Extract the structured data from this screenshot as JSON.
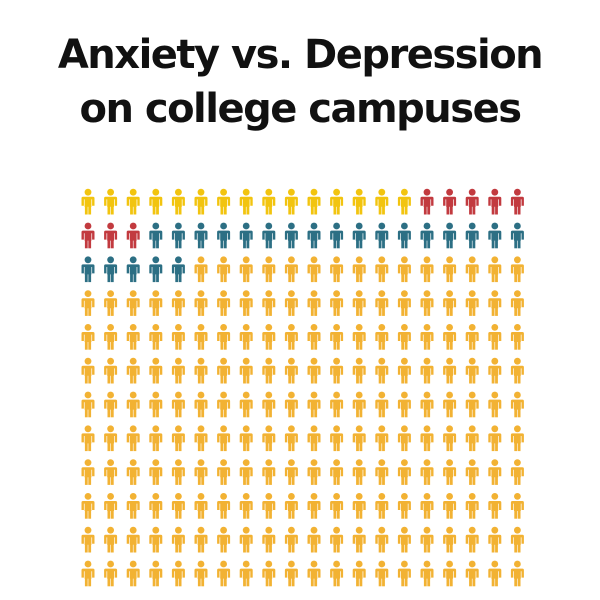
{
  "chart": {
    "title_line1": "Anxiety vs. Depression",
    "title_line2": "on college campuses"
  },
  "chart_data": {
    "type": "pictograph",
    "title": "Anxiety vs. Depression on college campuses",
    "grid": {
      "rows": 12,
      "columns": 20,
      "total_icons": 240
    },
    "series": [
      {
        "color": "#F2C40F",
        "value": 15
      },
      {
        "color": "#C23A3F",
        "value": 8
      },
      {
        "color": "#2C6F84",
        "value": 22
      },
      {
        "color": "#F2B233",
        "value": 195
      }
    ],
    "icon": "person-icon"
  }
}
